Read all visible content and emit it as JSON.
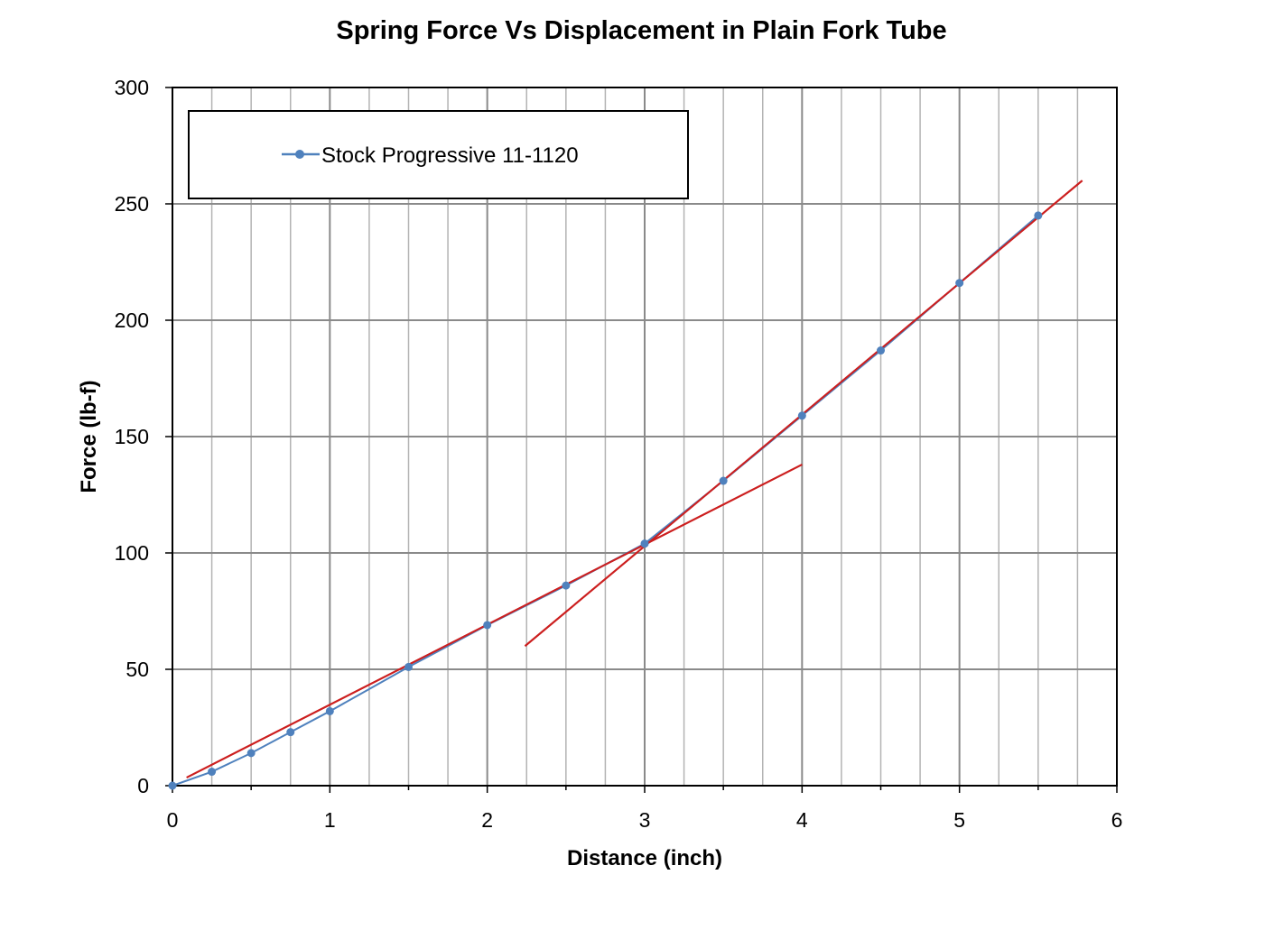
{
  "chart_data": {
    "type": "line",
    "title": "Spring Force Vs Displacement in Plain Fork Tube",
    "xlabel": "Distance (inch)",
    "ylabel": "Force (lb-f)",
    "xlim": [
      0,
      6
    ],
    "ylim": [
      0,
      300
    ],
    "x_ticks": [
      "0",
      "1",
      "2",
      "3",
      "4",
      "5",
      "6"
    ],
    "y_ticks": [
      "0",
      "50",
      "100",
      "150",
      "200",
      "250",
      "300"
    ],
    "grid": true,
    "legend_position": "top-left",
    "series": [
      {
        "name": "Stock Progressive 11-1120",
        "color": "#4f81bd",
        "x": [
          0,
          0.25,
          0.5,
          0.75,
          1,
          1.5,
          2,
          2.5,
          3,
          3.5,
          4,
          4.5,
          5,
          5.5
        ],
        "y": [
          0,
          6,
          14,
          23,
          32,
          51,
          69,
          86,
          104,
          131,
          159,
          187,
          216,
          245
        ]
      }
    ],
    "trend_lines": [
      {
        "color": "#cc1f1f",
        "x": [
          0.09,
          4.0
        ],
        "y": [
          3.5,
          138
        ]
      },
      {
        "color": "#cc1f1f",
        "x": [
          2.24,
          5.78
        ],
        "y": [
          60,
          260
        ]
      }
    ]
  }
}
